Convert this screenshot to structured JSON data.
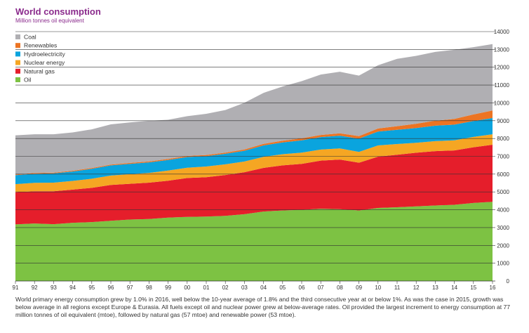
{
  "header": {
    "title": "World consumption",
    "subtitle": "Million tonnes oil equivalent"
  },
  "caption": "World primary energy consumption grew by 1.0% in 2016, well below the 10-year average of 1.8% and the third consecutive year at or below 1%. As was the case in 2015, growth was below average in all regions except Europe & Eurasia. All fuels except oil and nuclear power grew at below-average rates. Oil provided the largest increment to energy consumption at 77 million tonnes of oil equivalent (mtoe), followed by natural gas (57 mtoe) and renewable power (53 mtoe).",
  "chart_data": {
    "type": "area",
    "stacked": true,
    "title": "World consumption",
    "ylabel": "Million tonnes oil equivalent",
    "xlabel": "",
    "ylim": [
      0,
      14000
    ],
    "yticks": [
      0,
      1000,
      2000,
      3000,
      4000,
      5000,
      6000,
      7000,
      8000,
      9000,
      10000,
      11000,
      12000,
      13000,
      14000
    ],
    "categories": [
      "91",
      "92",
      "93",
      "94",
      "95",
      "96",
      "97",
      "98",
      "99",
      "00",
      "01",
      "02",
      "03",
      "04",
      "05",
      "06",
      "07",
      "08",
      "09",
      "10",
      "11",
      "12",
      "13",
      "14",
      "15",
      "16"
    ],
    "legend_position": "top-left",
    "series": [
      {
        "name": "Oil",
        "color": "#7dc243",
        "values": [
          3180,
          3230,
          3190,
          3270,
          3310,
          3380,
          3450,
          3480,
          3560,
          3600,
          3620,
          3660,
          3750,
          3900,
          3960,
          4000,
          4060,
          4030,
          3960,
          4100,
          4140,
          4190,
          4240,
          4280,
          4380,
          4450
        ]
      },
      {
        "name": "Natural gas",
        "color": "#e51e2b",
        "values": [
          1800,
          1810,
          1850,
          1860,
          1920,
          2010,
          2010,
          2040,
          2070,
          2180,
          2210,
          2290,
          2360,
          2450,
          2530,
          2580,
          2700,
          2790,
          2680,
          2880,
          2950,
          3010,
          3050,
          3050,
          3130,
          3200
        ]
      },
      {
        "name": "Nuclear energy",
        "color": "#f5a623",
        "values": [
          460,
          470,
          480,
          490,
          510,
          530,
          540,
          550,
          570,
          580,
          600,
          600,
          600,
          620,
          630,
          630,
          620,
          620,
          610,
          630,
          600,
          560,
          560,
          570,
          580,
          590
        ]
      },
      {
        "name": "Hydroelectricity",
        "color": "#0aa4de",
        "values": [
          500,
          510,
          520,
          530,
          560,
          570,
          580,
          590,
          590,
          600,
          580,
          590,
          600,
          640,
          660,
          690,
          700,
          720,
          740,
          780,
          800,
          830,
          870,
          880,
          890,
          910
        ]
      },
      {
        "name": "Renewables",
        "color": "#ec7423",
        "values": [
          40,
          40,
          40,
          40,
          45,
          45,
          50,
          55,
          60,
          60,
          65,
          70,
          75,
          90,
          100,
          110,
          120,
          130,
          140,
          170,
          200,
          240,
          280,
          320,
          370,
          420
        ]
      },
      {
        "name": "Coal",
        "color": "#b0afb3",
        "values": [
          2200,
          2180,
          2160,
          2150,
          2170,
          2260,
          2270,
          2280,
          2200,
          2230,
          2310,
          2390,
          2620,
          2860,
          3040,
          3210,
          3390,
          3460,
          3400,
          3550,
          3780,
          3810,
          3860,
          3880,
          3780,
          3730
        ]
      }
    ]
  }
}
